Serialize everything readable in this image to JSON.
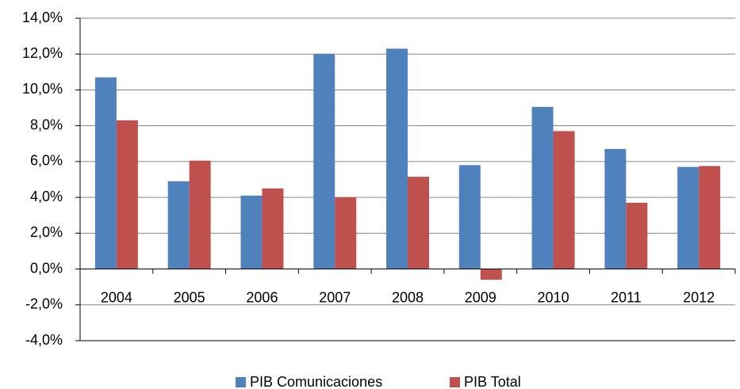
{
  "chart_data": {
    "type": "bar",
    "categories": [
      "2004",
      "2005",
      "2006",
      "2007",
      "2008",
      "2009",
      "2010",
      "2011",
      "2012"
    ],
    "series": [
      {
        "name": "PIB Comunicaciones",
        "color": "#4f81bd",
        "values": [
          10.7,
          4.9,
          4.1,
          12.0,
          12.3,
          5.8,
          9.05,
          6.7,
          5.7
        ]
      },
      {
        "name": "PIB Total",
        "color": "#c0504d",
        "values": [
          8.3,
          6.05,
          4.5,
          4.0,
          5.15,
          -0.6,
          7.7,
          3.7,
          5.75
        ]
      }
    ],
    "ylim": [
      -4,
      14
    ],
    "yticks": [
      {
        "value": -4,
        "label": "-4,0%"
      },
      {
        "value": -2,
        "label": "-2,0%"
      },
      {
        "value": 0,
        "label": "0,0%"
      },
      {
        "value": 2,
        "label": "2,0%"
      },
      {
        "value": 4,
        "label": "4,0%"
      },
      {
        "value": 6,
        "label": "6,0%"
      },
      {
        "value": 8,
        "label": "8,0%"
      },
      {
        "value": 10,
        "label": "10,0%"
      },
      {
        "value": 12,
        "label": "12,0%"
      },
      {
        "value": 14,
        "label": "14,0%"
      }
    ],
    "grid": true,
    "legend": "bottom"
  }
}
